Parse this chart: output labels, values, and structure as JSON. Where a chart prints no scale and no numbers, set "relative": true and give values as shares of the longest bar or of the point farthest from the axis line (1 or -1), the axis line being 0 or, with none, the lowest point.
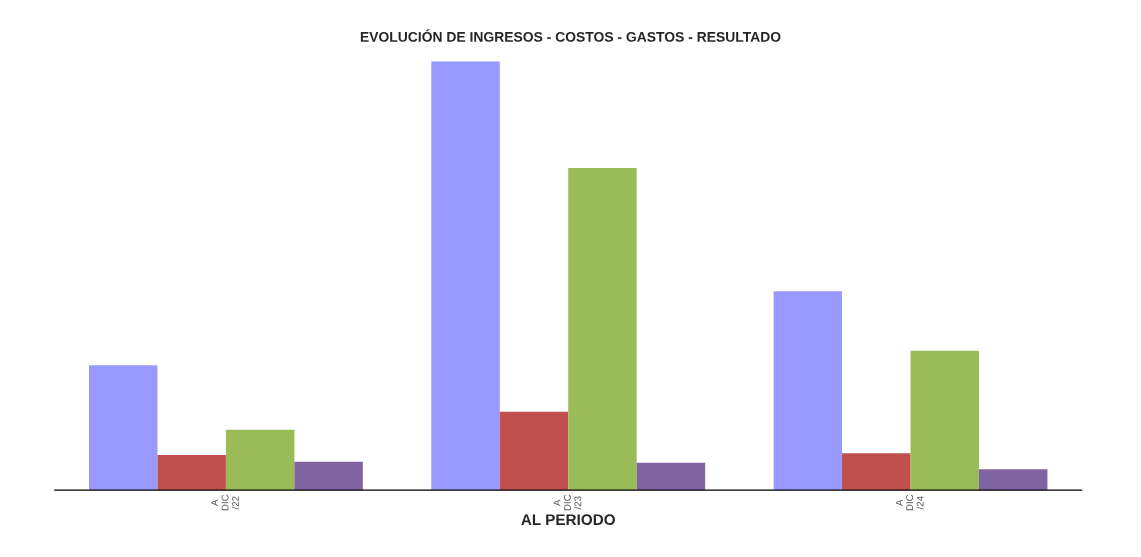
{
  "chart_data": {
    "type": "bar",
    "title": "EVOLUCIÓN DE INGRESOS - COSTOS - GASTOS - RESULTADO",
    "xlabel": "AL PERIODO",
    "relative": true,
    "legend": false,
    "grid": false,
    "categories": [
      "A\nDIC\n/22",
      "A\nDIC\n/23",
      "A\nDIC\n/24"
    ],
    "series": [
      {
        "color": "#9999ff",
        "values": [
          0.291,
          1,
          0.464
        ]
      },
      {
        "color": "#c0504d",
        "values": [
          0.082,
          0.183,
          0.086
        ]
      },
      {
        "color": "#9bbb59",
        "values": [
          0.141,
          0.751,
          0.325
        ]
      },
      {
        "color": "#8064a2",
        "values": [
          0.066,
          0.064,
          0.049
        ]
      }
    ]
  }
}
